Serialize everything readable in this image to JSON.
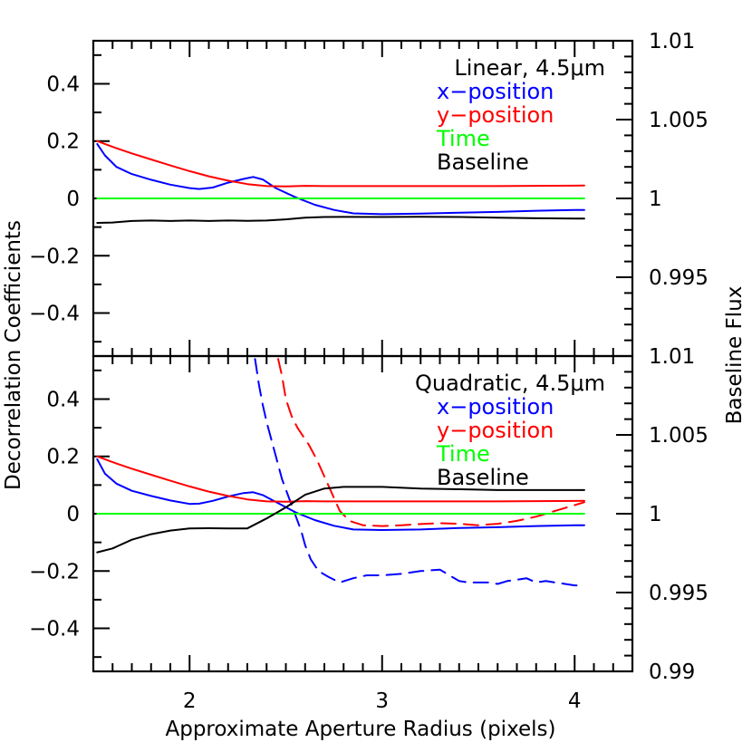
{
  "chart_data": {
    "type": "line",
    "xlabel": "Approximate Aperture Radius (pixels)",
    "ylabel_left": "Decorrelation Coefficients",
    "ylabel_right": "Baseline Flux",
    "xlim": [
      1.5,
      4.3
    ],
    "x_ticks": [
      2,
      3,
      4
    ],
    "panels": [
      {
        "id": "linear",
        "legend_title": "Linear, 4.5μm",
        "ylim": [
          -0.55,
          0.55
        ],
        "y_ticks": [
          0.4,
          0.2,
          0,
          -0.2,
          -0.4
        ],
        "y_tick_labels": [
          "0.4",
          "0.2",
          "0",
          "−0.2",
          "−0.4"
        ],
        "right_ylim": [
          0.99,
          1.01
        ],
        "right_ticks": [
          1.01,
          1.005,
          1,
          0.995
        ],
        "right_tick_labels": [
          "1.01",
          "1.005",
          "1",
          "0.995"
        ],
        "series": [
          {
            "name": "x−position",
            "color": "#0000ff",
            "axis": "left",
            "dash": false,
            "x": [
              1.52,
              1.56,
              1.62,
              1.7,
              1.8,
              1.9,
              2.0,
              2.05,
              2.12,
              2.2,
              2.28,
              2.33,
              2.38,
              2.45,
              2.55,
              2.65,
              2.75,
              2.85,
              3.0,
              3.2,
              3.4,
              3.6,
              3.8,
              4.0,
              4.05
            ],
            "y": [
              0.19,
              0.15,
              0.11,
              0.085,
              0.065,
              0.048,
              0.036,
              0.033,
              0.038,
              0.055,
              0.068,
              0.075,
              0.066,
              0.035,
              0.004,
              -0.022,
              -0.04,
              -0.052,
              -0.055,
              -0.053,
              -0.05,
              -0.047,
              -0.043,
              -0.04,
              -0.04
            ]
          },
          {
            "name": "y−position",
            "color": "#ff0000",
            "axis": "left",
            "dash": false,
            "x": [
              1.52,
              1.6,
              1.7,
              1.8,
              1.9,
              2.0,
              2.1,
              2.2,
              2.3,
              2.4,
              2.5,
              2.6,
              2.7,
              2.8,
              3.0,
              3.2,
              3.4,
              3.6,
              3.8,
              4.05
            ],
            "y": [
              0.2,
              0.18,
              0.157,
              0.136,
              0.115,
              0.095,
              0.077,
              0.062,
              0.05,
              0.043,
              0.042,
              0.044,
              0.043,
              0.043,
              0.043,
              0.043,
              0.043,
              0.043,
              0.044,
              0.045
            ]
          },
          {
            "name": "Time",
            "color": "#00ff00",
            "axis": "left",
            "dash": false,
            "x": [
              1.52,
              2.0,
              2.5,
              3.0,
              3.5,
              4.05
            ],
            "y": [
              0.0,
              0.0,
              0.0,
              0.0,
              0.0,
              0.0
            ]
          },
          {
            "name": "Baseline",
            "color": "#000000",
            "axis": "right",
            "dash": false,
            "x": [
              1.52,
              1.6,
              1.7,
              1.8,
              1.9,
              2.0,
              2.1,
              2.2,
              2.3,
              2.4,
              2.5,
              2.6,
              2.7,
              2.8,
              3.0,
              3.2,
              3.4,
              3.6,
              3.8,
              4.05
            ],
            "y": [
              0.99845,
              0.99847,
              0.99857,
              0.9986,
              0.99857,
              0.9986,
              0.99857,
              0.9986,
              0.99858,
              0.9986,
              0.99867,
              0.99878,
              0.99882,
              0.99883,
              0.99882,
              0.99884,
              0.99882,
              0.99878,
              0.99874,
              0.99872
            ]
          }
        ]
      },
      {
        "id": "quadratic",
        "legend_title": "Quadratic, 4.5μm",
        "ylim": [
          -0.55,
          0.55
        ],
        "y_ticks": [
          0.4,
          0.2,
          0,
          -0.2,
          -0.4
        ],
        "y_tick_labels": [
          "0.4",
          "0.2",
          "0",
          "−0.2",
          "−0.4"
        ],
        "right_ylim": [
          0.99,
          1.01
        ],
        "right_ticks": [
          1.01,
          1.005,
          1,
          0.995,
          0.99
        ],
        "right_tick_labels": [
          "1.01",
          "1.005",
          "1",
          "0.995",
          "0.99"
        ],
        "series": [
          {
            "name": "x−position",
            "color": "#0000ff",
            "axis": "left",
            "dash": false,
            "x": [
              1.52,
              1.56,
              1.62,
              1.7,
              1.8,
              1.9,
              2.0,
              2.05,
              2.12,
              2.2,
              2.28,
              2.33,
              2.38,
              2.45,
              2.55,
              2.65,
              2.75,
              2.85,
              3.0,
              3.2,
              3.4,
              3.6,
              3.8,
              4.0,
              4.05
            ],
            "y": [
              0.19,
              0.14,
              0.105,
              0.08,
              0.062,
              0.046,
              0.034,
              0.035,
              0.045,
              0.06,
              0.072,
              0.075,
              0.065,
              0.04,
              0.005,
              -0.022,
              -0.042,
              -0.055,
              -0.057,
              -0.055,
              -0.05,
              -0.047,
              -0.043,
              -0.04,
              -0.04
            ]
          },
          {
            "name": "x−position (quadratic term)",
            "color": "#0000ff",
            "axis": "left",
            "dash": true,
            "x": [
              2.34,
              2.36,
              2.38,
              2.4,
              2.44,
              2.48,
              2.53,
              2.58,
              2.6,
              2.63,
              2.67,
              2.72,
              2.78,
              2.85,
              2.92,
              3.0,
              3.1,
              3.2,
              3.3,
              3.35,
              3.4,
              3.45,
              3.5,
              3.55,
              3.6,
              3.65,
              3.7,
              3.75,
              3.8,
              3.85,
              3.9,
              3.95,
              4.0,
              4.05
            ],
            "y": [
              0.54,
              0.45,
              0.38,
              0.32,
              0.22,
              0.12,
              0.03,
              -0.06,
              -0.11,
              -0.16,
              -0.2,
              -0.22,
              -0.24,
              -0.225,
              -0.215,
              -0.215,
              -0.21,
              -0.2,
              -0.195,
              -0.215,
              -0.235,
              -0.24,
              -0.24,
              -0.24,
              -0.245,
              -0.235,
              -0.23,
              -0.225,
              -0.24,
              -0.235,
              -0.24,
              -0.245,
              -0.25,
              -0.25
            ]
          },
          {
            "name": "y−position",
            "color": "#ff0000",
            "axis": "left",
            "dash": false,
            "x": [
              1.52,
              1.6,
              1.7,
              1.8,
              1.9,
              2.0,
              2.1,
              2.2,
              2.3,
              2.4,
              2.5,
              2.6,
              2.7,
              2.8,
              3.0,
              3.2,
              3.4,
              3.6,
              3.8,
              4.05
            ],
            "y": [
              0.2,
              0.18,
              0.157,
              0.136,
              0.115,
              0.095,
              0.077,
              0.062,
              0.05,
              0.043,
              0.042,
              0.044,
              0.043,
              0.043,
              0.043,
              0.043,
              0.043,
              0.043,
              0.044,
              0.045
            ]
          },
          {
            "name": "y−position (quadratic term)",
            "color": "#ff0000",
            "axis": "left",
            "dash": true,
            "x": [
              2.46,
              2.48,
              2.5,
              2.53,
              2.56,
              2.58,
              2.62,
              2.66,
              2.7,
              2.74,
              2.78,
              2.83,
              2.9,
              3.0,
              3.1,
              3.2,
              3.3,
              3.4,
              3.5,
              3.6,
              3.7,
              3.8,
              3.9,
              4.0,
              4.05
            ],
            "y": [
              0.54,
              0.48,
              0.4,
              0.34,
              0.3,
              0.28,
              0.24,
              0.19,
              0.13,
              0.07,
              0.01,
              -0.025,
              -0.04,
              -0.043,
              -0.04,
              -0.036,
              -0.033,
              -0.035,
              -0.04,
              -0.035,
              -0.025,
              -0.01,
              0.01,
              0.03,
              0.04
            ]
          },
          {
            "name": "Time",
            "color": "#00ff00",
            "axis": "left",
            "dash": false,
            "x": [
              1.52,
              2.0,
              2.5,
              3.0,
              3.5,
              4.05
            ],
            "y": [
              0.0,
              0.0,
              0.0,
              0.0,
              0.0,
              0.0
            ]
          },
          {
            "name": "Baseline",
            "color": "#000000",
            "axis": "right",
            "dash": false,
            "x": [
              1.52,
              1.6,
              1.7,
              1.8,
              1.9,
              2.0,
              2.1,
              2.2,
              2.3,
              2.4,
              2.5,
              2.6,
              2.7,
              2.8,
              3.0,
              3.2,
              3.4,
              3.6,
              3.8,
              4.05
            ],
            "y": [
              0.99755,
              0.9978,
              0.99835,
              0.9987,
              0.99893,
              0.99907,
              0.99908,
              0.99907,
              0.99907,
              0.9997,
              1.0004,
              1.0012,
              1.0016,
              1.0017,
              1.0017,
              1.0016,
              1.00155,
              1.0015,
              1.0015,
              1.0015
            ]
          }
        ]
      }
    ],
    "legend": [
      {
        "label": "x−position",
        "color": "#0000ff"
      },
      {
        "label": "y−position",
        "color": "#ff0000"
      },
      {
        "label": "Time",
        "color": "#00ff00"
      },
      {
        "label": "Baseline",
        "color": "#000000"
      }
    ]
  }
}
